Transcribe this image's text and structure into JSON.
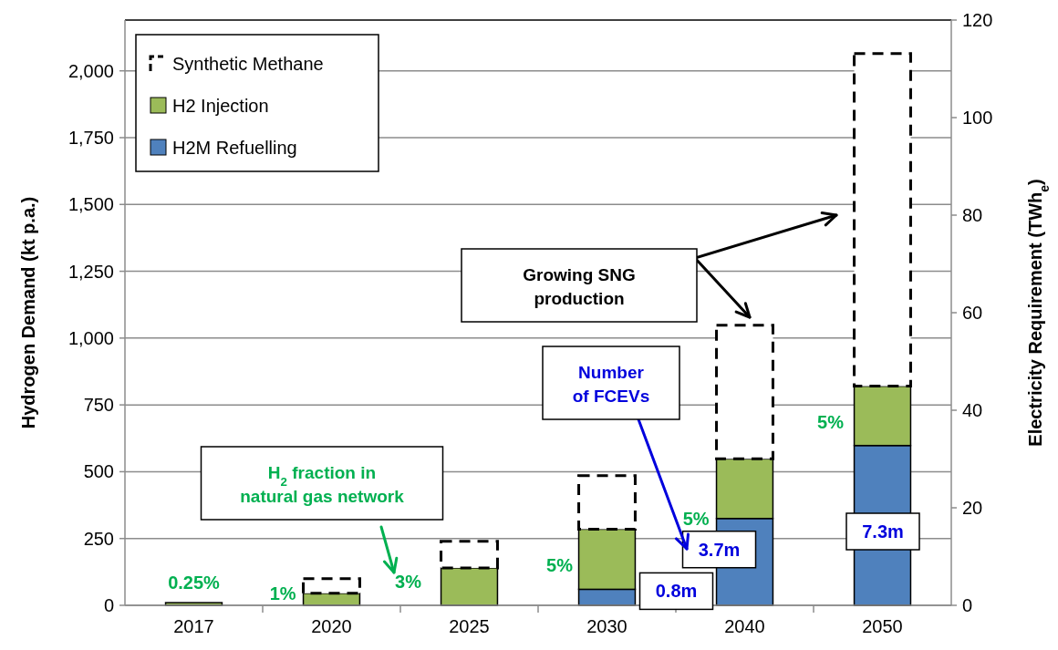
{
  "chart_data": {
    "type": "bar",
    "stacked": true,
    "categories": [
      "2017",
      "2020",
      "2025",
      "2030",
      "2040",
      "2050"
    ],
    "series": [
      {
        "name": "H2M Refuelling",
        "color": "#4f81bd",
        "values": [
          0,
          0,
          0,
          60,
          325,
          598
        ]
      },
      {
        "name": "H2 Injection",
        "color": "#9bbb59",
        "values": [
          10,
          45,
          140,
          225,
          223,
          222
        ]
      },
      {
        "name": "Synthetic Methane",
        "color": "#000000",
        "line_style": "dashed",
        "values": [
          0,
          55,
          100,
          200,
          500,
          1245
        ]
      }
    ],
    "ylabel": "Hydrogen Demand (kt p.a.)",
    "y2label": "Electricity Requirement (TWh$_{e}$)",
    "ylim": [
      0,
      2190
    ],
    "yticks": [
      0,
      {
        "value": 250,
        "label": "250"
      },
      {
        "value": 500,
        "label": "500"
      },
      {
        "value": 750,
        "label": "750"
      },
      {
        "value": 1000,
        "label": "1,000"
      },
      {
        "value": 1250,
        "label": "1,250"
      },
      {
        "value": 1500,
        "label": "1,500"
      },
      {
        "value": 1750,
        "label": "1,750"
      },
      {
        "value": 2000,
        "label": "2,000"
      }
    ],
    "y2lim": [
      0,
      120
    ],
    "y2ticks": [
      0,
      20,
      40,
      60,
      80,
      100,
      120
    ],
    "grid": "y",
    "legend": "top left",
    "annotations": [
      {
        "text": "0.25%",
        "x": "2017",
        "y": 10
      },
      {
        "text": "1%",
        "x": "2020",
        "y": 45
      },
      "3%",
      "5%",
      {
        "text": "5%",
        "x": "2040",
        "y": 325
      },
      "5%",
      {
        "text": "0.8m",
        "x": "2030",
        "y": 60
      },
      {
        "text": "3.7m",
        "x": "2040",
        "y": 325
      },
      "7.3m",
      "H$_{2}$ fraction in natural gas network",
      "Number of FCEVs",
      "Growing SNG production"
    ]
  }
}
